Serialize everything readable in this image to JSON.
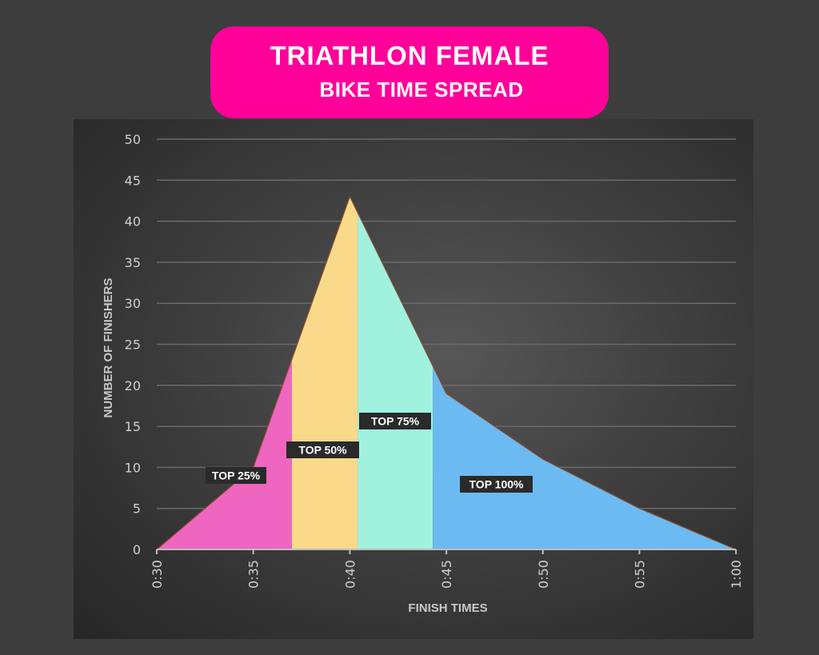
{
  "title": {
    "line1": "TRIATHLON FEMALE",
    "line2": "BIKE TIME SPREAD"
  },
  "colors": {
    "title_bg": "#ff0099",
    "top25": "#ee66c0",
    "top50": "#f9d98a",
    "top75": "#a0f2de",
    "top100": "#6bbbf2"
  },
  "chart_data": {
    "type": "area",
    "title": "TRIATHLON FEMALE BIKE TIME SPREAD",
    "xlabel": "FINISH TIMES",
    "ylabel": "NUMBER OF FINISHERS",
    "x": [
      "0:30",
      "0:35",
      "0:40",
      "0:45",
      "0:50",
      "0:55",
      "1:00"
    ],
    "values": [
      0,
      10,
      43,
      19,
      11,
      5,
      0
    ],
    "ylim": [
      0,
      50
    ],
    "yticks": [
      0,
      5,
      10,
      15,
      20,
      25,
      30,
      35,
      40,
      45,
      50
    ],
    "grid": true,
    "regions": [
      {
        "label": "TOP 25%",
        "from": "0:30",
        "to": "0:37",
        "color": "#ee66c0"
      },
      {
        "label": "TOP 50%",
        "from": "0:37",
        "to": "0:40.4",
        "color": "#f9d98a"
      },
      {
        "label": "TOP 75%",
        "from": "0:40.4",
        "to": "0:44.3",
        "color": "#a0f2de"
      },
      {
        "label": "TOP 100%",
        "from": "0:44.3",
        "to": "1:00",
        "color": "#6bbbf2"
      }
    ]
  }
}
